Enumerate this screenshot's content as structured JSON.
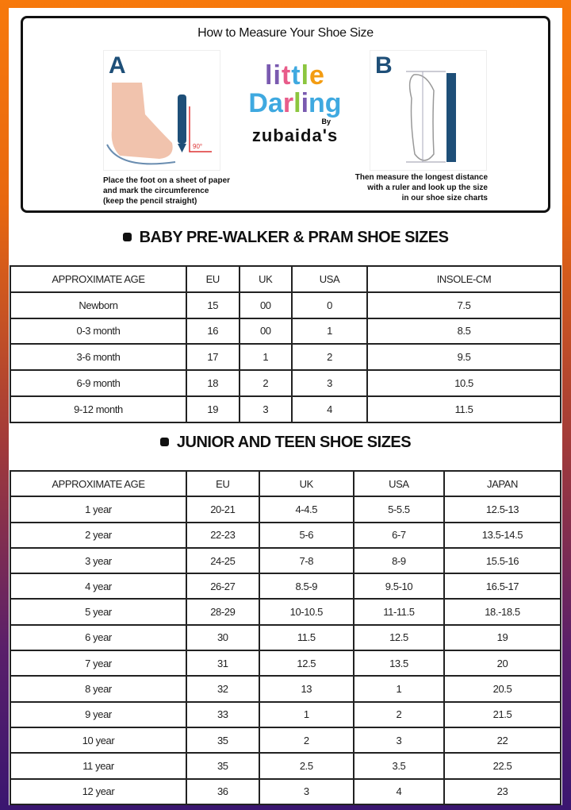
{
  "measure": {
    "title": "How to Measure Your Shoe Size",
    "step_a": {
      "letter": "A",
      "caption": [
        "Place the foot on a sheet of paper",
        "and mark the circumference",
        "(keep the pencil straight)"
      ],
      "angle_label": "90°"
    },
    "step_b": {
      "letter": "B",
      "caption": [
        "Then measure the longest distance",
        "with a ruler and look up the size",
        "in our shoe size charts"
      ]
    },
    "logo": {
      "line1": "little",
      "line2": "Darling",
      "by": "By",
      "brand": "zubaida's"
    }
  },
  "baby": {
    "title": "BABY PRE-WALKER & PRAM SHOE SIZES",
    "headers": [
      "APPROXIMATE AGE",
      "EU",
      "UK",
      "USA",
      "INSOLE-CM"
    ],
    "rows": [
      [
        "Newborn",
        "15",
        "00",
        "0",
        "7.5"
      ],
      [
        "0-3 month",
        "16",
        "00",
        "1",
        "8.5"
      ],
      [
        "3-6 month",
        "17",
        "1",
        "2",
        "9.5"
      ],
      [
        "6-9 month",
        "18",
        "2",
        "3",
        "10.5"
      ],
      [
        "9-12 month",
        "19",
        "3",
        "4",
        "11.5"
      ]
    ]
  },
  "junior": {
    "title": "JUNIOR AND TEEN SHOE SIZES",
    "headers": [
      "APPROXIMATE AGE",
      "EU",
      "UK",
      "USA",
      "JAPAN"
    ],
    "rows": [
      [
        "1 year",
        "20-21",
        "4-4.5",
        "5-5.5",
        "12.5-13"
      ],
      [
        "2 year",
        "22-23",
        "5-6",
        "6-7",
        "13.5-14.5"
      ],
      [
        "3 year",
        "24-25",
        "7-8",
        "8-9",
        "15.5-16"
      ],
      [
        "4 year",
        "26-27",
        "8.5-9",
        "9.5-10",
        "16.5-17"
      ],
      [
        "5 year",
        "28-29",
        "10-10.5",
        "11-11.5",
        "18.-18.5"
      ],
      [
        "6 year",
        "30",
        "11.5",
        "12.5",
        "19"
      ],
      [
        "7 year",
        "31",
        "12.5",
        "13.5",
        "20"
      ],
      [
        "8 year",
        "32",
        "13",
        "1",
        "20.5"
      ],
      [
        "9 year",
        "33",
        "1",
        "2",
        "21.5"
      ],
      [
        "10 year",
        "35",
        "2",
        "3",
        "22"
      ],
      [
        "11 year",
        "35",
        "2.5",
        "3.5",
        "22.5"
      ],
      [
        "12 year",
        "36",
        "3",
        "4",
        "23"
      ]
    ]
  }
}
